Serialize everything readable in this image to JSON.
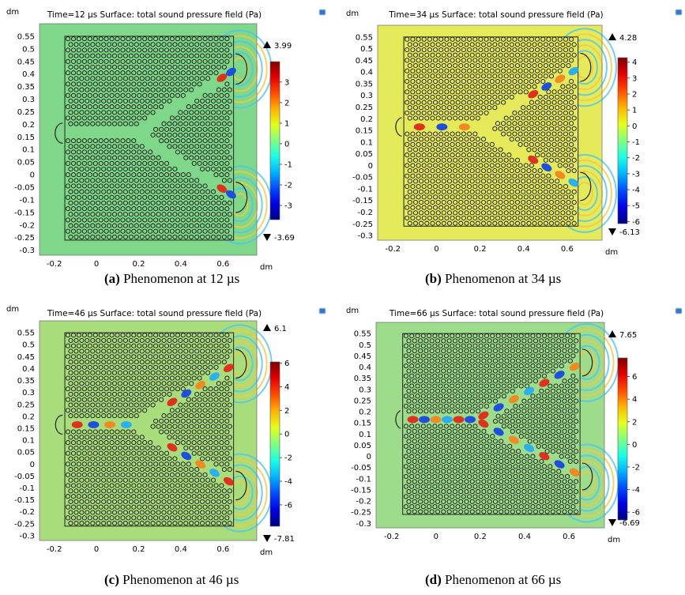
{
  "chart_data": [
    {
      "type": "heatmap",
      "title": "Time=12 µs Surface: total sound pressure field (Pa)",
      "time_us": 12,
      "xlabel": "dm",
      "ylabel": "dm",
      "xticks": [
        "-0.2",
        "0",
        "0.2",
        "0.4",
        "0.6"
      ],
      "yticks": [
        "0.55",
        "0.5",
        "0.45",
        "0.4",
        "0.35",
        "0.3",
        "0.25",
        "0.2",
        "0.15",
        "0.1",
        "0.05",
        "0",
        "-0.05",
        "-0.1",
        "-0.15",
        "-0.2",
        "-0.25",
        "-0.3"
      ],
      "xlim": [
        -0.27,
        0.76
      ],
      "ylim": [
        -0.32,
        0.6
      ],
      "colorbar_ticks": [
        "3",
        "2",
        "1",
        "0",
        "-1",
        "-2",
        "-3"
      ],
      "clim": [
        -3.69,
        3.99
      ],
      "max_label": "3.99",
      "min_label": "-3.69",
      "caption_letter": "(a)",
      "caption_text": " Phenomenon at 12 µs"
    },
    {
      "type": "heatmap",
      "title": "Time=34 µs Surface: total sound pressure field (Pa)",
      "time_us": 34,
      "xlabel": "dm",
      "ylabel": "dm",
      "xticks": [
        "-0.2",
        "0",
        "0.2",
        "0.4",
        "0.6"
      ],
      "yticks": [
        "0.55",
        "0.5",
        "0.45",
        "0.4",
        "0.35",
        "0.3",
        "0.25",
        "0.2",
        "0.15",
        "0.1",
        "0.05",
        "0",
        "-0.05",
        "-0.1",
        "-0.15",
        "-0.2",
        "-0.25",
        "-0.3"
      ],
      "xlim": [
        -0.27,
        0.76
      ],
      "ylim": [
        -0.32,
        0.6
      ],
      "colorbar_ticks": [
        "4",
        "3",
        "2",
        "1",
        "0",
        "-1",
        "-2",
        "-3",
        "-4",
        "-5",
        "-6"
      ],
      "clim": [
        -6.13,
        4.28
      ],
      "max_label": "4.28",
      "min_label": "-6.13",
      "caption_letter": "(b)",
      "caption_text": " Phenomenon at 34 µs"
    },
    {
      "type": "heatmap",
      "title": "Time=46 µs Surface: total sound pressure field (Pa)",
      "time_us": 46,
      "xlabel": "dm",
      "ylabel": "dm",
      "xticks": [
        "-0.2",
        "0",
        "0.2",
        "0.4",
        "0.6"
      ],
      "yticks": [
        "0.55",
        "0.5",
        "0.45",
        "0.4",
        "0.35",
        "0.3",
        "0.25",
        "0.2",
        "0.15",
        "0.1",
        "0.05",
        "0",
        "-0.05",
        "-0.1",
        "-0.15",
        "-0.2",
        "-0.25",
        "-0.3"
      ],
      "xlim": [
        -0.27,
        0.76
      ],
      "ylim": [
        -0.32,
        0.6
      ],
      "colorbar_ticks": [
        "6",
        "4",
        "2",
        "0",
        "-2",
        "-4",
        "-6"
      ],
      "clim": [
        -7.81,
        6.1
      ],
      "max_label": "6.1",
      "min_label": "-7.81",
      "caption_letter": "(c)",
      "caption_text": " Phenomenon at 46 µs"
    },
    {
      "type": "heatmap",
      "title": "Time=66 µs Surface: total sound pressure field (Pa)",
      "time_us": 66,
      "xlabel": "dm",
      "ylabel": "dm",
      "xticks": [
        "-0.2",
        "0",
        "0.2",
        "0.4",
        "0.6"
      ],
      "yticks": [
        "0.55",
        "0.5",
        "0.45",
        "0.4",
        "0.35",
        "0.3",
        "0.25",
        "0.2",
        "0.15",
        "0.1",
        "0.05",
        "0",
        "-0.05",
        "-0.1",
        "-0.15",
        "-0.2",
        "-0.25",
        "-0.3"
      ],
      "xlim": [
        -0.27,
        0.76
      ],
      "ylim": [
        -0.32,
        0.6
      ],
      "colorbar_ticks": [
        "6",
        "4",
        "2",
        "0",
        "-2",
        "-4",
        "-6"
      ],
      "clim": [
        -6.69,
        7.65
      ],
      "max_label": "7.65",
      "min_label": "-6.69",
      "caption_letter": "(d)",
      "caption_text": " Phenomenon at 66 µs"
    }
  ]
}
